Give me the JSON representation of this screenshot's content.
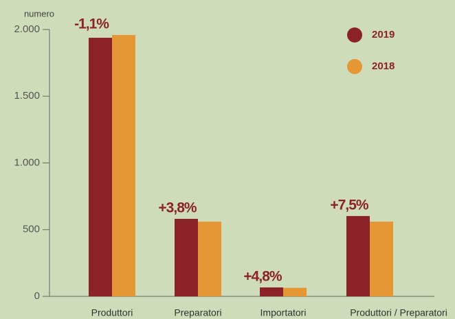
{
  "chart_data": {
    "type": "bar",
    "y_label": "numero",
    "categories": [
      "Produttori",
      "Preparatori",
      "Importatori",
      "Produttori / Preparatori"
    ],
    "series": [
      {
        "name": "2019",
        "color": "#8b2227",
        "values": [
          1938,
          581,
          67,
          602
        ]
      },
      {
        "name": "2018",
        "color": "#e59635",
        "values": [
          1959,
          560,
          64,
          560
        ]
      }
    ],
    "annotations": [
      "-1,1%",
      "+3,8%",
      "+4,8%",
      "+7,5%"
    ],
    "ylim": [
      0,
      2000
    ],
    "yticks": [
      0,
      500,
      {
        "value": 1000,
        "label": "1.000"
      },
      {
        "value": 1500,
        "label": "1.500"
      },
      {
        "value": 2000,
        "label": "2.000"
      }
    ],
    "legend": "top-right"
  }
}
